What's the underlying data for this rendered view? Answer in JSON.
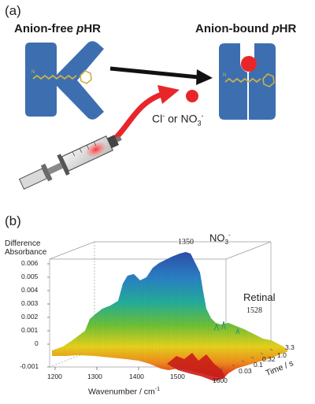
{
  "panel_a": {
    "label": "(a)",
    "left_title_prefix": "Anion-free ",
    "left_title_italic": "p",
    "left_title_suffix": "HR",
    "right_title_prefix": "Anion-bound ",
    "right_title_italic": "p",
    "right_title_suffix": "HR",
    "ion_label_prefix": "Cl",
    "ion_label_sup1": "-",
    "ion_label_mid": " or NO",
    "ion_label_sub": "3",
    "ion_label_sup2": "-",
    "colors": {
      "protein": "#3d6fb0",
      "anion": "#e8262a",
      "arrow": "#111111",
      "injection_arrow": "#e8262a"
    }
  },
  "panel_b": {
    "label": "(b)",
    "y_title_line1": "Difference",
    "y_title_line2": "Absorbance",
    "y_ticks": [
      "0.006",
      "0.005",
      "0.004",
      "0.003",
      "0.002",
      "0.001",
      "0",
      "-0.001"
    ],
    "x_ticks": [
      "1200",
      "1300",
      "1400",
      "1500",
      "1600"
    ],
    "x_title": "Wavenumber / cm",
    "x_title_sup": "-1",
    "t_ticks": [
      "0.03",
      "0.1",
      "0.32",
      "1.0",
      "3.3"
    ],
    "t_title": "Time / s",
    "anion_label": "NO",
    "anion_sub": "3",
    "anion_sup": "-",
    "peak_1350": "1350",
    "peak_1528": "1528",
    "retinal_label": "Retinal"
  }
}
